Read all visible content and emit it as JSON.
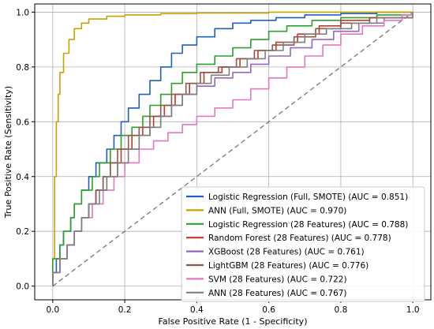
{
  "chart_data": {
    "type": "line",
    "xlabel": "False Positive Rate (1 - Specificity)",
    "ylabel": "True Positive Rate (Sensitivity)",
    "xlim": [
      -0.05,
      1.05
    ],
    "ylim": [
      -0.05,
      1.03
    ],
    "xticks": [
      "0.0",
      "0.2",
      "0.4",
      "0.6",
      "0.8",
      "1.0"
    ],
    "yticks": [
      "0.0",
      "0.2",
      "0.4",
      "0.6",
      "0.8",
      "1.0"
    ],
    "grid": true,
    "legend_position": "lower right",
    "diagonal": {
      "style": "dashed",
      "color": "#7f7f7f",
      "points": [
        [
          0,
          0
        ],
        [
          1,
          1
        ]
      ]
    },
    "series": [
      {
        "name": "Logistic Regression (Full, SMOTE) (AUC = 0.851)",
        "color": "#1f5fbf",
        "points": [
          [
            0,
            0
          ],
          [
            0,
            0.05
          ],
          [
            0.01,
            0.1
          ],
          [
            0.02,
            0.15
          ],
          [
            0.03,
            0.2
          ],
          [
            0.05,
            0.25
          ],
          [
            0.06,
            0.3
          ],
          [
            0.08,
            0.35
          ],
          [
            0.1,
            0.4
          ],
          [
            0.12,
            0.45
          ],
          [
            0.15,
            0.5
          ],
          [
            0.17,
            0.55
          ],
          [
            0.19,
            0.6
          ],
          [
            0.21,
            0.65
          ],
          [
            0.24,
            0.7
          ],
          [
            0.27,
            0.75
          ],
          [
            0.3,
            0.8
          ],
          [
            0.33,
            0.85
          ],
          [
            0.36,
            0.88
          ],
          [
            0.4,
            0.91
          ],
          [
            0.45,
            0.94
          ],
          [
            0.5,
            0.96
          ],
          [
            0.55,
            0.97
          ],
          [
            0.62,
            0.98
          ],
          [
            0.7,
            0.99
          ],
          [
            0.8,
            0.995
          ],
          [
            0.9,
            1.0
          ],
          [
            1,
            1
          ]
        ]
      },
      {
        "name": "ANN (Full, SMOTE) (AUC = 0.970)",
        "color": "#c9a200",
        "points": [
          [
            0,
            0
          ],
          [
            0,
            0.1
          ],
          [
            0.005,
            0.4
          ],
          [
            0.01,
            0.6
          ],
          [
            0.015,
            0.7
          ],
          [
            0.02,
            0.78
          ],
          [
            0.03,
            0.85
          ],
          [
            0.045,
            0.9
          ],
          [
            0.06,
            0.94
          ],
          [
            0.08,
            0.96
          ],
          [
            0.1,
            0.975
          ],
          [
            0.15,
            0.985
          ],
          [
            0.2,
            0.99
          ],
          [
            0.3,
            0.995
          ],
          [
            0.4,
            0.997
          ],
          [
            0.6,
            1.0
          ],
          [
            1,
            1
          ]
        ]
      },
      {
        "name": "Logistic Regression (28 Features) (AUC = 0.788)",
        "color": "#2ca02c",
        "points": [
          [
            0,
            0
          ],
          [
            0,
            0.1
          ],
          [
            0.02,
            0.15
          ],
          [
            0.03,
            0.2
          ],
          [
            0.05,
            0.25
          ],
          [
            0.06,
            0.3
          ],
          [
            0.08,
            0.35
          ],
          [
            0.11,
            0.4
          ],
          [
            0.13,
            0.45
          ],
          [
            0.16,
            0.5
          ],
          [
            0.19,
            0.55
          ],
          [
            0.22,
            0.58
          ],
          [
            0.25,
            0.62
          ],
          [
            0.27,
            0.66
          ],
          [
            0.3,
            0.7
          ],
          [
            0.33,
            0.74
          ],
          [
            0.36,
            0.78
          ],
          [
            0.4,
            0.81
          ],
          [
            0.45,
            0.84
          ],
          [
            0.5,
            0.87
          ],
          [
            0.55,
            0.9
          ],
          [
            0.6,
            0.93
          ],
          [
            0.65,
            0.95
          ],
          [
            0.72,
            0.97
          ],
          [
            0.8,
            0.98
          ],
          [
            0.9,
            0.99
          ],
          [
            1,
            1
          ]
        ]
      },
      {
        "name": "Random Forest (28 Features) (AUC = 0.778)",
        "color": "#c0392b",
        "points": [
          [
            0,
            0
          ],
          [
            0,
            0.05
          ],
          [
            0.02,
            0.1
          ],
          [
            0.04,
            0.15
          ],
          [
            0.06,
            0.2
          ],
          [
            0.08,
            0.25
          ],
          [
            0.1,
            0.3
          ],
          [
            0.12,
            0.35
          ],
          [
            0.14,
            0.4
          ],
          [
            0.16,
            0.45
          ],
          [
            0.19,
            0.5
          ],
          [
            0.22,
            0.55
          ],
          [
            0.25,
            0.58
          ],
          [
            0.28,
            0.62
          ],
          [
            0.31,
            0.66
          ],
          [
            0.34,
            0.7
          ],
          [
            0.38,
            0.74
          ],
          [
            0.42,
            0.78
          ],
          [
            0.47,
            0.8
          ],
          [
            0.52,
            0.83
          ],
          [
            0.57,
            0.86
          ],
          [
            0.62,
            0.89
          ],
          [
            0.68,
            0.92
          ],
          [
            0.74,
            0.95
          ],
          [
            0.8,
            0.97
          ],
          [
            0.88,
            0.98
          ],
          [
            1,
            1
          ]
        ]
      },
      {
        "name": "XGBoost (28 Features) (AUC = 0.761)",
        "color": "#9467bd",
        "points": [
          [
            0,
            0
          ],
          [
            0,
            0.05
          ],
          [
            0.02,
            0.1
          ],
          [
            0.04,
            0.15
          ],
          [
            0.06,
            0.2
          ],
          [
            0.08,
            0.25
          ],
          [
            0.1,
            0.3
          ],
          [
            0.12,
            0.35
          ],
          [
            0.15,
            0.4
          ],
          [
            0.18,
            0.45
          ],
          [
            0.21,
            0.5
          ],
          [
            0.24,
            0.55
          ],
          [
            0.27,
            0.58
          ],
          [
            0.3,
            0.62
          ],
          [
            0.33,
            0.66
          ],
          [
            0.36,
            0.7
          ],
          [
            0.4,
            0.73
          ],
          [
            0.45,
            0.76
          ],
          [
            0.5,
            0.78
          ],
          [
            0.55,
            0.81
          ],
          [
            0.6,
            0.84
          ],
          [
            0.66,
            0.87
          ],
          [
            0.72,
            0.9
          ],
          [
            0.78,
            0.93
          ],
          [
            0.85,
            0.96
          ],
          [
            0.92,
            0.98
          ],
          [
            1,
            1
          ]
        ]
      },
      {
        "name": "LightGBM (28 Features) (AUC = 0.776)",
        "color": "#8c564b",
        "points": [
          [
            0,
            0
          ],
          [
            0,
            0.05
          ],
          [
            0.02,
            0.1
          ],
          [
            0.04,
            0.15
          ],
          [
            0.06,
            0.2
          ],
          [
            0.08,
            0.25
          ],
          [
            0.1,
            0.3
          ],
          [
            0.12,
            0.35
          ],
          [
            0.14,
            0.4
          ],
          [
            0.16,
            0.45
          ],
          [
            0.18,
            0.5
          ],
          [
            0.21,
            0.55
          ],
          [
            0.24,
            0.58
          ],
          [
            0.27,
            0.62
          ],
          [
            0.3,
            0.66
          ],
          [
            0.33,
            0.7
          ],
          [
            0.37,
            0.74
          ],
          [
            0.41,
            0.78
          ],
          [
            0.46,
            0.8
          ],
          [
            0.51,
            0.83
          ],
          [
            0.56,
            0.86
          ],
          [
            0.61,
            0.88
          ],
          [
            0.67,
            0.91
          ],
          [
            0.73,
            0.94
          ],
          [
            0.8,
            0.96
          ],
          [
            0.88,
            0.98
          ],
          [
            1,
            1
          ]
        ]
      },
      {
        "name": "SVM (28 Features) (AUC = 0.722)",
        "color": "#e377c2",
        "points": [
          [
            0,
            0
          ],
          [
            0,
            0.05
          ],
          [
            0.02,
            0.1
          ],
          [
            0.04,
            0.15
          ],
          [
            0.06,
            0.2
          ],
          [
            0.08,
            0.25
          ],
          [
            0.11,
            0.3
          ],
          [
            0.14,
            0.35
          ],
          [
            0.17,
            0.4
          ],
          [
            0.2,
            0.45
          ],
          [
            0.24,
            0.5
          ],
          [
            0.28,
            0.53
          ],
          [
            0.32,
            0.56
          ],
          [
            0.36,
            0.59
          ],
          [
            0.4,
            0.62
          ],
          [
            0.45,
            0.65
          ],
          [
            0.5,
            0.68
          ],
          [
            0.55,
            0.72
          ],
          [
            0.6,
            0.76
          ],
          [
            0.65,
            0.8
          ],
          [
            0.7,
            0.84
          ],
          [
            0.75,
            0.88
          ],
          [
            0.8,
            0.92
          ],
          [
            0.86,
            0.95
          ],
          [
            0.92,
            0.97
          ],
          [
            0.97,
            0.99
          ],
          [
            1,
            1
          ]
        ]
      },
      {
        "name": "ANN (28 Features) (AUC = 0.767)",
        "color": "#7f7f7f",
        "points": [
          [
            0,
            0
          ],
          [
            0,
            0.05
          ],
          [
            0.02,
            0.1
          ],
          [
            0.04,
            0.15
          ],
          [
            0.06,
            0.2
          ],
          [
            0.08,
            0.25
          ],
          [
            0.1,
            0.3
          ],
          [
            0.13,
            0.35
          ],
          [
            0.15,
            0.4
          ],
          [
            0.18,
            0.45
          ],
          [
            0.21,
            0.5
          ],
          [
            0.24,
            0.55
          ],
          [
            0.27,
            0.58
          ],
          [
            0.3,
            0.62
          ],
          [
            0.33,
            0.66
          ],
          [
            0.36,
            0.7
          ],
          [
            0.4,
            0.74
          ],
          [
            0.44,
            0.77
          ],
          [
            0.49,
            0.8
          ],
          [
            0.54,
            0.83
          ],
          [
            0.59,
            0.86
          ],
          [
            0.64,
            0.89
          ],
          [
            0.7,
            0.92
          ],
          [
            0.76,
            0.94
          ],
          [
            0.83,
            0.96
          ],
          [
            0.9,
            0.98
          ],
          [
            1,
            1
          ]
        ]
      }
    ]
  }
}
